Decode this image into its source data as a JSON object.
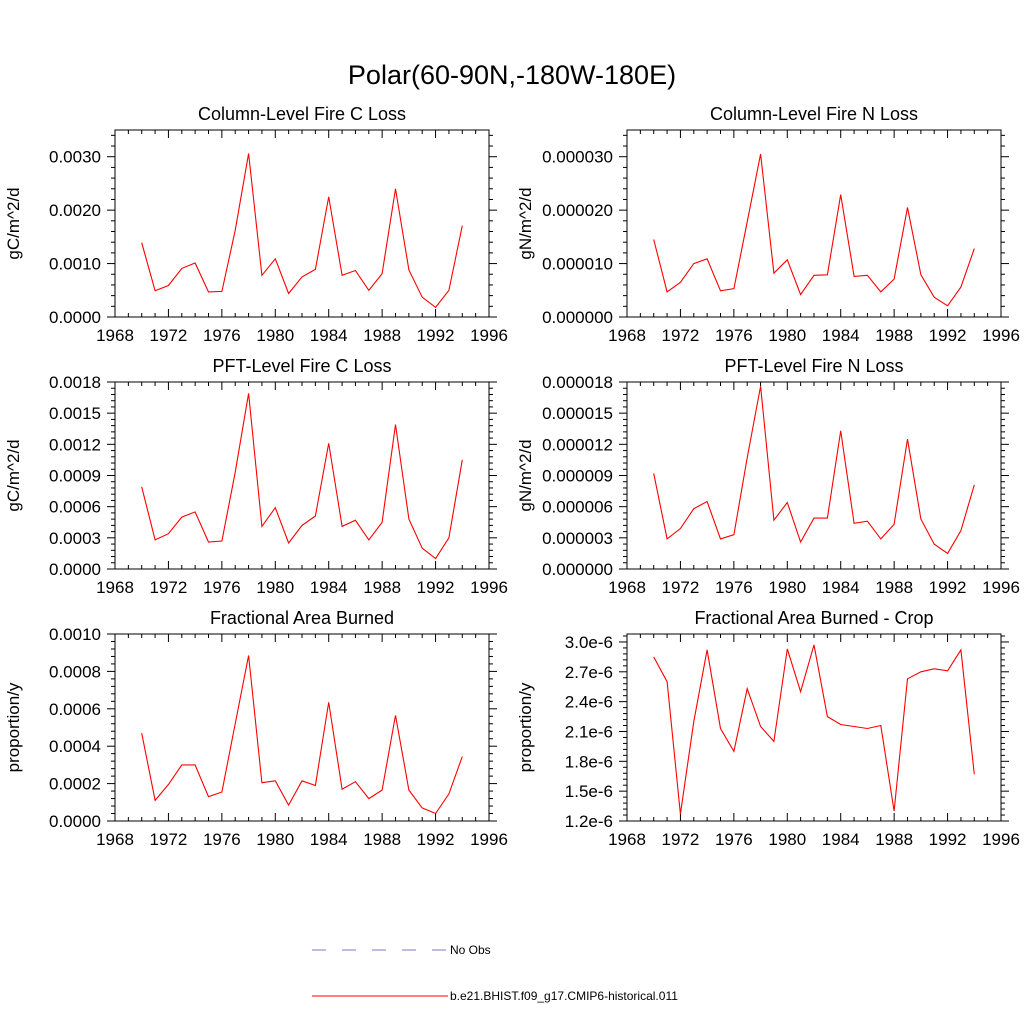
{
  "figure_title": "Polar(60-90N,-180W-180E)",
  "chart_data": [
    {
      "type": "line",
      "title": "Column-Level Fire C Loss",
      "xlabel": "",
      "ylabel": "gC/m^2/d",
      "xlim": [
        1968,
        1996
      ],
      "ylim": [
        0,
        0.0035
      ],
      "xticks": [
        1968,
        1972,
        1976,
        1980,
        1984,
        1988,
        1992,
        1996
      ],
      "xtick_labels": [
        "1968",
        "1972",
        "1976",
        "1980",
        "1984",
        "1988",
        "1992",
        "1996"
      ],
      "yticks": [
        0,
        0.001,
        0.002,
        0.003
      ],
      "ytick_labels": [
        "0.0000",
        "0.0010",
        "0.0020",
        "0.0030"
      ],
      "grid": false,
      "x": [
        1970,
        1971,
        1972,
        1973,
        1974,
        1975,
        1976,
        1977,
        1978,
        1979,
        1980,
        1981,
        1982,
        1983,
        1984,
        1985,
        1986,
        1987,
        1988,
        1989,
        1990,
        1991,
        1992,
        1993,
        1994
      ],
      "series": [
        {
          "color": "#ff0000",
          "values": [
            0.00139,
            0.00049,
            0.00059,
            0.00091,
            0.00101,
            0.00047,
            0.00048,
            0.00162,
            0.00306,
            0.00078,
            0.00109,
            0.00044,
            0.00075,
            0.00089,
            0.00225,
            0.00078,
            0.00087,
            0.0005,
            0.00081,
            0.0024,
            0.00088,
            0.00037,
            0.00018,
            0.0005,
            0.00171
          ]
        }
      ]
    },
    {
      "type": "line",
      "title": "Column-Level Fire N Loss",
      "xlabel": "",
      "ylabel": "gN/m^2/d",
      "xlim": [
        1968,
        1996
      ],
      "ylim": [
        0,
        3.5e-05
      ],
      "xticks": [
        1968,
        1972,
        1976,
        1980,
        1984,
        1988,
        1992,
        1996
      ],
      "xtick_labels": [
        "1968",
        "1972",
        "1976",
        "1980",
        "1984",
        "1988",
        "1992",
        "1996"
      ],
      "yticks": [
        0,
        1e-05,
        2e-05,
        3e-05
      ],
      "ytick_labels": [
        "0.000000",
        "0.000010",
        "0.000020",
        "0.000030"
      ],
      "grid": false,
      "x": [
        1970,
        1971,
        1972,
        1973,
        1974,
        1975,
        1976,
        1977,
        1978,
        1979,
        1980,
        1981,
        1982,
        1983,
        1984,
        1985,
        1986,
        1987,
        1988,
        1989,
        1990,
        1991,
        1992,
        1993,
        1994
      ],
      "series": [
        {
          "color": "#ff0000",
          "values": [
            1.45e-05,
            4.7e-06,
            6.5e-06,
            1e-05,
            1.09e-05,
            4.9e-06,
            5.3e-06,
            1.78e-05,
            3.05e-05,
            8.2e-06,
            1.07e-05,
            4.2e-06,
            7.8e-06,
            7.9e-06,
            2.29e-05,
            7.6e-06,
            7.8e-06,
            4.7e-06,
            7.1e-06,
            2.05e-05,
            7.9e-06,
            3.7e-06,
            2.1e-06,
            5.6e-06,
            1.28e-05
          ]
        }
      ]
    },
    {
      "type": "line",
      "title": "PFT-Level Fire C Loss",
      "xlabel": "",
      "ylabel": "gC/m^2/d",
      "xlim": [
        1968,
        1996
      ],
      "ylim": [
        0,
        0.0018
      ],
      "xticks": [
        1968,
        1972,
        1976,
        1980,
        1984,
        1988,
        1992,
        1996
      ],
      "xtick_labels": [
        "1968",
        "1972",
        "1976",
        "1980",
        "1984",
        "1988",
        "1992",
        "1996"
      ],
      "yticks": [
        0,
        0.0003,
        0.0006,
        0.0009,
        0.0012,
        0.0015,
        0.0018
      ],
      "ytick_labels": [
        "0.0000",
        "0.0003",
        "0.0006",
        "0.0009",
        "0.0012",
        "0.0015",
        "0.0018"
      ],
      "grid": false,
      "x": [
        1970,
        1971,
        1972,
        1973,
        1974,
        1975,
        1976,
        1977,
        1978,
        1979,
        1980,
        1981,
        1982,
        1983,
        1984,
        1985,
        1986,
        1987,
        1988,
        1989,
        1990,
        1991,
        1992,
        1993,
        1994
      ],
      "series": [
        {
          "color": "#ff0000",
          "values": [
            0.00079,
            0.00028,
            0.00034,
            0.0005,
            0.00055,
            0.00026,
            0.00027,
            0.00093,
            0.00169,
            0.00041,
            0.00059,
            0.00025,
            0.00042,
            0.00051,
            0.00121,
            0.00041,
            0.00047,
            0.00028,
            0.00045,
            0.00139,
            0.00048,
            0.0002,
            0.0001,
            0.0003,
            0.00105
          ]
        }
      ]
    },
    {
      "type": "line",
      "title": "PFT-Level Fire N Loss",
      "xlabel": "",
      "ylabel": "gN/m^2/d",
      "xlim": [
        1968,
        1996
      ],
      "ylim": [
        0,
        1.8e-05
      ],
      "xticks": [
        1968,
        1972,
        1976,
        1980,
        1984,
        1988,
        1992,
        1996
      ],
      "xtick_labels": [
        "1968",
        "1972",
        "1976",
        "1980",
        "1984",
        "1988",
        "1992",
        "1996"
      ],
      "yticks": [
        0,
        3e-06,
        6e-06,
        9e-06,
        1.2e-05,
        1.5e-05,
        1.8e-05
      ],
      "ytick_labels": [
        "0.000000",
        "0.000003",
        "0.000006",
        "0.000009",
        "0.000012",
        "0.000015",
        "0.000018"
      ],
      "grid": false,
      "x": [
        1970,
        1971,
        1972,
        1973,
        1974,
        1975,
        1976,
        1977,
        1978,
        1979,
        1980,
        1981,
        1982,
        1983,
        1984,
        1985,
        1986,
        1987,
        1988,
        1989,
        1990,
        1991,
        1992,
        1993,
        1994
      ],
      "series": [
        {
          "color": "#ff0000",
          "values": [
            9.2e-06,
            2.9e-06,
            3.9e-06,
            5.8e-06,
            6.5e-06,
            2.9e-06,
            3.3e-06,
            1.07e-05,
            1.76e-05,
            4.7e-06,
            6.4e-06,
            2.6e-06,
            4.9e-06,
            4.9e-06,
            1.33e-05,
            4.4e-06,
            4.6e-06,
            2.9e-06,
            4.3e-06,
            1.25e-05,
            4.8e-06,
            2.4e-06,
            1.5e-06,
            3.7e-06,
            8.1e-06
          ]
        }
      ]
    },
    {
      "type": "line",
      "title": "Fractional Area Burned",
      "xlabel": "",
      "ylabel": "proportion/y",
      "xlim": [
        1968,
        1996
      ],
      "ylim": [
        0,
        0.001
      ],
      "xticks": [
        1968,
        1972,
        1976,
        1980,
        1984,
        1988,
        1992,
        1996
      ],
      "xtick_labels": [
        "1968",
        "1972",
        "1976",
        "1980",
        "1984",
        "1988",
        "1992",
        "1996"
      ],
      "yticks": [
        0,
        0.0002,
        0.0004,
        0.0006,
        0.0008,
        0.001
      ],
      "ytick_labels": [
        "0.0000",
        "0.0002",
        "0.0004",
        "0.0006",
        "0.0008",
        "0.0010"
      ],
      "grid": false,
      "x": [
        1970,
        1971,
        1972,
        1973,
        1974,
        1975,
        1976,
        1977,
        1978,
        1979,
        1980,
        1981,
        1982,
        1983,
        1984,
        1985,
        1986,
        1987,
        1988,
        1989,
        1990,
        1991,
        1992,
        1993,
        1994
      ],
      "series": [
        {
          "color": "#ff0000",
          "values": [
            0.00047,
            0.00011,
            0.000195,
            0.0003,
            0.0003,
            0.00013,
            0.000155,
            0.00052,
            0.000885,
            0.000205,
            0.000215,
            8.5e-05,
            0.000215,
            0.00019,
            0.000635,
            0.00017,
            0.00021,
            0.00012,
            0.000165,
            0.000565,
            0.000165,
            7e-05,
            4e-05,
            0.000145,
            0.000345
          ]
        }
      ]
    },
    {
      "type": "line",
      "title": "Fractional Area Burned - Crop",
      "xlabel": "",
      "ylabel": "proportion/y",
      "xlim": [
        1968,
        1996
      ],
      "ylim": [
        1.2e-06,
        3.08e-06
      ],
      "xticks": [
        1968,
        1972,
        1976,
        1980,
        1984,
        1988,
        1992,
        1996
      ],
      "xtick_labels": [
        "1968",
        "1972",
        "1976",
        "1980",
        "1984",
        "1988",
        "1992",
        "1996"
      ],
      "yticks": [
        1.2e-06,
        1.5e-06,
        1.8e-06,
        2.1e-06,
        2.4e-06,
        2.7e-06,
        3e-06
      ],
      "ytick_labels": [
        "1.2e-6",
        "1.5e-6",
        "1.8e-6",
        "2.1e-6",
        "2.4e-6",
        "2.7e-6",
        "3.0e-6"
      ],
      "grid": false,
      "x": [
        1970,
        1971,
        1972,
        1973,
        1974,
        1975,
        1976,
        1977,
        1978,
        1979,
        1980,
        1981,
        1982,
        1983,
        1984,
        1985,
        1986,
        1987,
        1988,
        1989,
        1990,
        1991,
        1992,
        1993,
        1994
      ],
      "series": [
        {
          "color": "#ff0000",
          "values": [
            2.85e-06,
            2.6e-06,
            1.27e-06,
            2.2e-06,
            2.92e-06,
            2.13e-06,
            1.9e-06,
            2.53e-06,
            2.15e-06,
            2e-06,
            2.93e-06,
            2.5e-06,
            2.97e-06,
            2.25e-06,
            2.17e-06,
            2.15e-06,
            2.13e-06,
            2.16e-06,
            1.3e-06,
            2.63e-06,
            2.7e-06,
            2.73e-06,
            2.71e-06,
            2.92e-06,
            1.67e-06
          ]
        }
      ]
    }
  ],
  "legend": {
    "items": [
      {
        "label": "No Obs",
        "color": "#7b7bc8",
        "dash": true
      },
      {
        "label": "b.e21.BHIST.f09_g17.CMIP6-historical.011",
        "color": "#ff0000",
        "dash": false
      }
    ]
  }
}
